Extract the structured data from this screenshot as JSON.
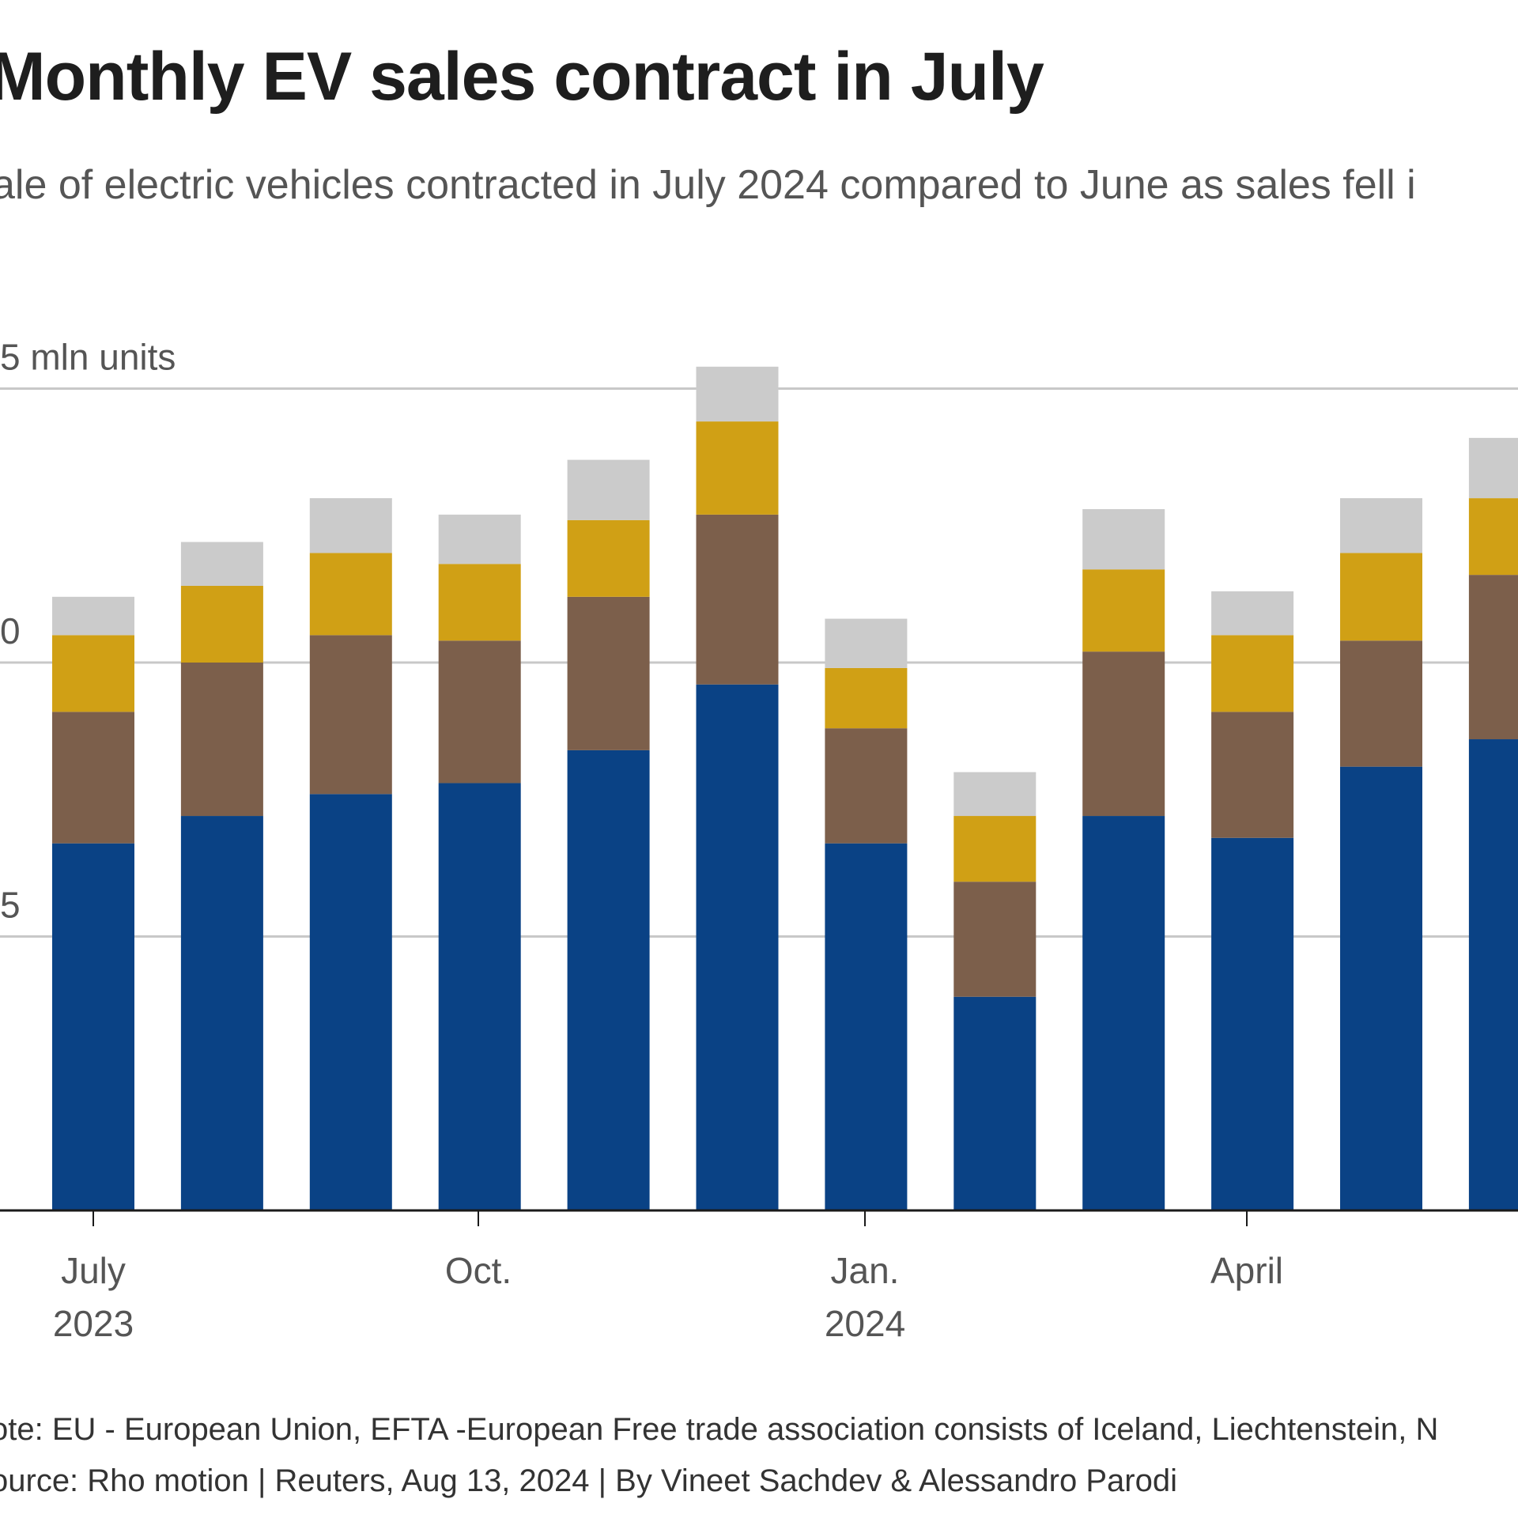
{
  "title": "Monthly EV sales contract in July",
  "subtitle": "ale of electric vehicles contracted in July 2024 compared to June as sales fell i",
  "footer": {
    "note": "ote: EU - European Union, EFTA -European Free trade association consists of Iceland, Liechtenstein, N",
    "source": "ource: Rho motion | Reuters, Aug 13, 2024 | By Vineet Sachdev & Alessandro Parodi"
  },
  "chart_data": {
    "type": "bar",
    "stacked": true,
    "title": "Monthly EV sales contract in July",
    "ylabel": "mln units",
    "ylim": [
      0,
      1.5
    ],
    "grid": true,
    "legend": "not visible",
    "y_ticks": [
      {
        "value": 0.5,
        "label": "5"
      },
      {
        "value": 1.0,
        "label": "0"
      },
      {
        "value": 1.5,
        "label": "5 mln units"
      }
    ],
    "x_ticks": [
      {
        "index": 0,
        "label": "July",
        "sublabel": "2023"
      },
      {
        "index": 3,
        "label": "Oct.",
        "sublabel": ""
      },
      {
        "index": 6,
        "label": "Jan.",
        "sublabel": "2024"
      },
      {
        "index": 9,
        "label": "April",
        "sublabel": ""
      }
    ],
    "categories": [
      "Jul 2023",
      "Aug 2023",
      "Sep 2023",
      "Oct 2023",
      "Nov 2023",
      "Dec 2023",
      "Jan 2024",
      "Feb 2024",
      "Mar 2024",
      "Apr 2024",
      "May 2024",
      "Jun 2024"
    ],
    "series": [
      {
        "name": "series-blue",
        "color": "#0a4285",
        "values": [
          0.67,
          0.72,
          0.76,
          0.78,
          0.84,
          0.96,
          0.67,
          0.39,
          0.72,
          0.68,
          0.81,
          0.86
        ]
      },
      {
        "name": "series-brown",
        "color": "#7c5f4b",
        "values": [
          0.24,
          0.28,
          0.29,
          0.26,
          0.28,
          0.31,
          0.21,
          0.21,
          0.3,
          0.23,
          0.23,
          0.3
        ]
      },
      {
        "name": "series-gold",
        "color": "#d0a015",
        "values": [
          0.14,
          0.14,
          0.15,
          0.14,
          0.14,
          0.17,
          0.11,
          0.12,
          0.15,
          0.14,
          0.16,
          0.14
        ]
      },
      {
        "name": "series-grey",
        "color": "#cbcbcb",
        "values": [
          0.07,
          0.08,
          0.1,
          0.09,
          0.11,
          0.1,
          0.09,
          0.08,
          0.11,
          0.08,
          0.1,
          0.11
        ]
      }
    ]
  }
}
